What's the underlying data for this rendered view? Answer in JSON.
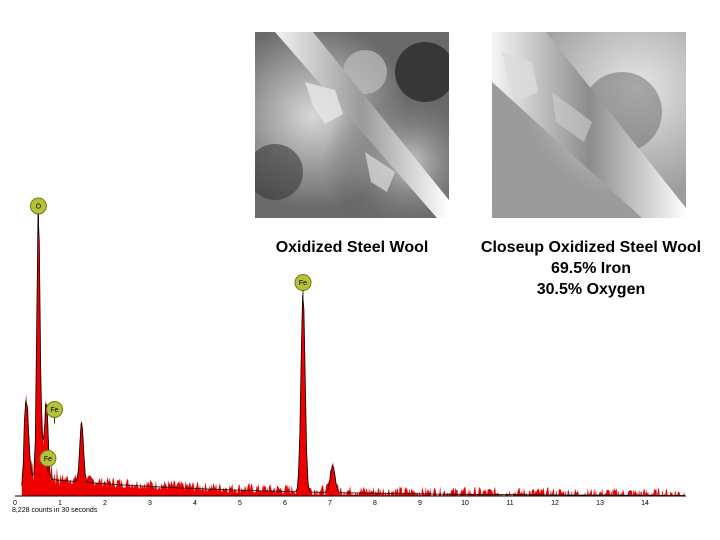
{
  "images": [
    {
      "name": "sem-oxidized-steel-wool",
      "caption": "Oxidized Steel Wool"
    },
    {
      "name": "sem-closeup-oxidized-steel-wool",
      "caption_lines": [
        "Closeup Oxidized Steel Wool",
        "69.5% Iron",
        "30.5% Oxygen"
      ]
    }
  ],
  "chart_data": {
    "type": "line",
    "title": "",
    "xlabel": "",
    "ylabel": "",
    "xlim": [
      0,
      15
    ],
    "x_ticks": [
      "0",
      "1",
      "2",
      "3",
      "4",
      "5",
      "6",
      "7",
      "8",
      "9",
      "10",
      "11",
      "12",
      "13",
      "14"
    ],
    "fill_color": "#ee0000",
    "line_color": "#000000",
    "counts_label": "8,228 counts in 30 seconds",
    "peaks": [
      {
        "element": "O",
        "energy_keV": 0.52,
        "relative_intensity": 1.0
      },
      {
        "element": "Fe",
        "energy_keV": 0.7,
        "relative_intensity": 0.27
      },
      {
        "element": "Fe",
        "energy_keV": 0.62,
        "relative_intensity": 0.1
      },
      {
        "element": "Fe",
        "energy_keV": 6.4,
        "relative_intensity": 0.73
      }
    ],
    "minor_peaks_keV": [
      1.48,
      7.06
    ],
    "marker_color": "#b4c238"
  }
}
